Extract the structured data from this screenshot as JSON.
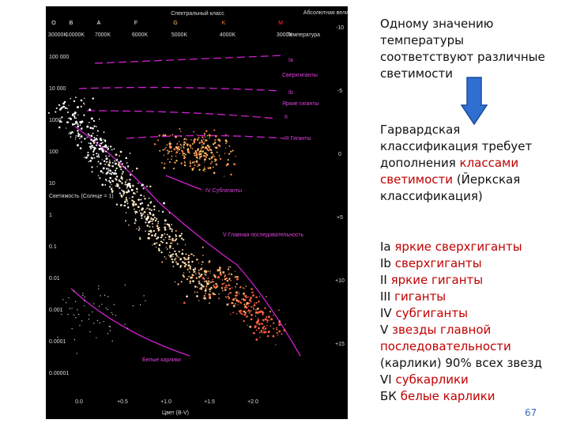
{
  "diagram": {
    "title": "Спектральный класс",
    "spectral_classes": [
      "O",
      "B",
      "A",
      "F",
      "G",
      "K",
      "M"
    ],
    "temperatures": [
      "30000K",
      "10000K",
      "7000K",
      "6000K",
      "5000K",
      "4000K",
      "3000K"
    ],
    "temperature_label": "Температура",
    "magnitude_label": "Абсолютная величина",
    "magnitudes": [
      "-10",
      "-5",
      "0",
      "+5",
      "+10",
      "+15"
    ],
    "luminosity_label": "Светимость (Солнце = 1)",
    "luminosities": [
      "100 000",
      "10 000",
      "1000",
      "100",
      "10",
      "1",
      "0.1",
      "0.01",
      "0.001",
      "0.0001",
      "0.00001"
    ],
    "color_label": "Цвет (B-V)",
    "color_indices": [
      "0.0",
      "+0.5",
      "+1.0",
      "+1.5",
      "+2.0"
    ],
    "regions": [
      "Ia",
      "Сверхгиганты",
      "Ib",
      "Яркие гиганты",
      "II",
      "III Гиганты",
      "IV Субгиганты",
      "V Главная последовательность",
      "Белые карлики"
    ]
  },
  "intro": "Одному значению температуры соответствуют различные светимости",
  "harvard": {
    "before": "Гарвардская классификация требует дополнения",
    "highlight": "классами светимости",
    "after": "(Йеркская классификация)"
  },
  "classes": [
    {
      "code": "Ia",
      "name": "яркие сверхгиганты"
    },
    {
      "code": "Ib",
      "name": "сверхгиганты"
    },
    {
      "code": "II",
      "name": "яркие гиганты"
    },
    {
      "code": "III",
      "name": "гиганты"
    },
    {
      "code": "IV",
      "name": "субгиганты"
    },
    {
      "code": "V",
      "name": "звезды главной последовательности",
      "note": "(карлики) 90% всех звезд"
    },
    {
      "code": "VI",
      "name": "субкарлики"
    },
    {
      "code": "БК",
      "name": "белые карлики"
    }
  ],
  "page_number": "67"
}
